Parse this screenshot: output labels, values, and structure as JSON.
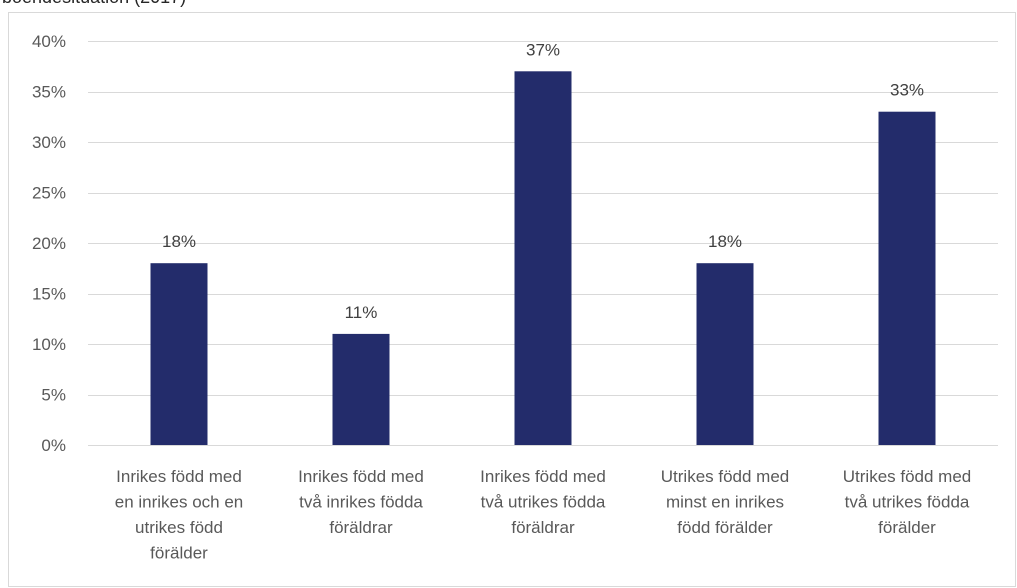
{
  "chart_data": {
    "type": "bar",
    "title": "boendesituation (2017)",
    "categories": [
      [
        "Inrikes född med",
        "en inrikes och en",
        "utrikes född",
        "förälder"
      ],
      [
        "Inrikes född med",
        "två inrikes födda",
        "föräldrar"
      ],
      [
        "Inrikes född med",
        "två utrikes födda",
        "föräldrar"
      ],
      [
        "Utrikes född med",
        "minst en inrikes",
        "född förälder"
      ],
      [
        "Utrikes född med",
        "två utrikes födda",
        "förälder"
      ]
    ],
    "values": [
      18,
      11,
      37,
      18,
      33
    ],
    "data_labels": [
      "18%",
      "11%",
      "37%",
      "18%",
      "33%"
    ],
    "ylim": [
      0,
      40
    ],
    "yticks": [
      0,
      5,
      10,
      15,
      20,
      25,
      30,
      35,
      40
    ],
    "ytick_labels": [
      "0%",
      "5%",
      "10%",
      "15%",
      "20%",
      "25%",
      "30%",
      "35%",
      "40%"
    ],
    "grid": true,
    "legend": "none",
    "bar_color": "#232c6b",
    "grid_color": "#d9d9d9"
  }
}
